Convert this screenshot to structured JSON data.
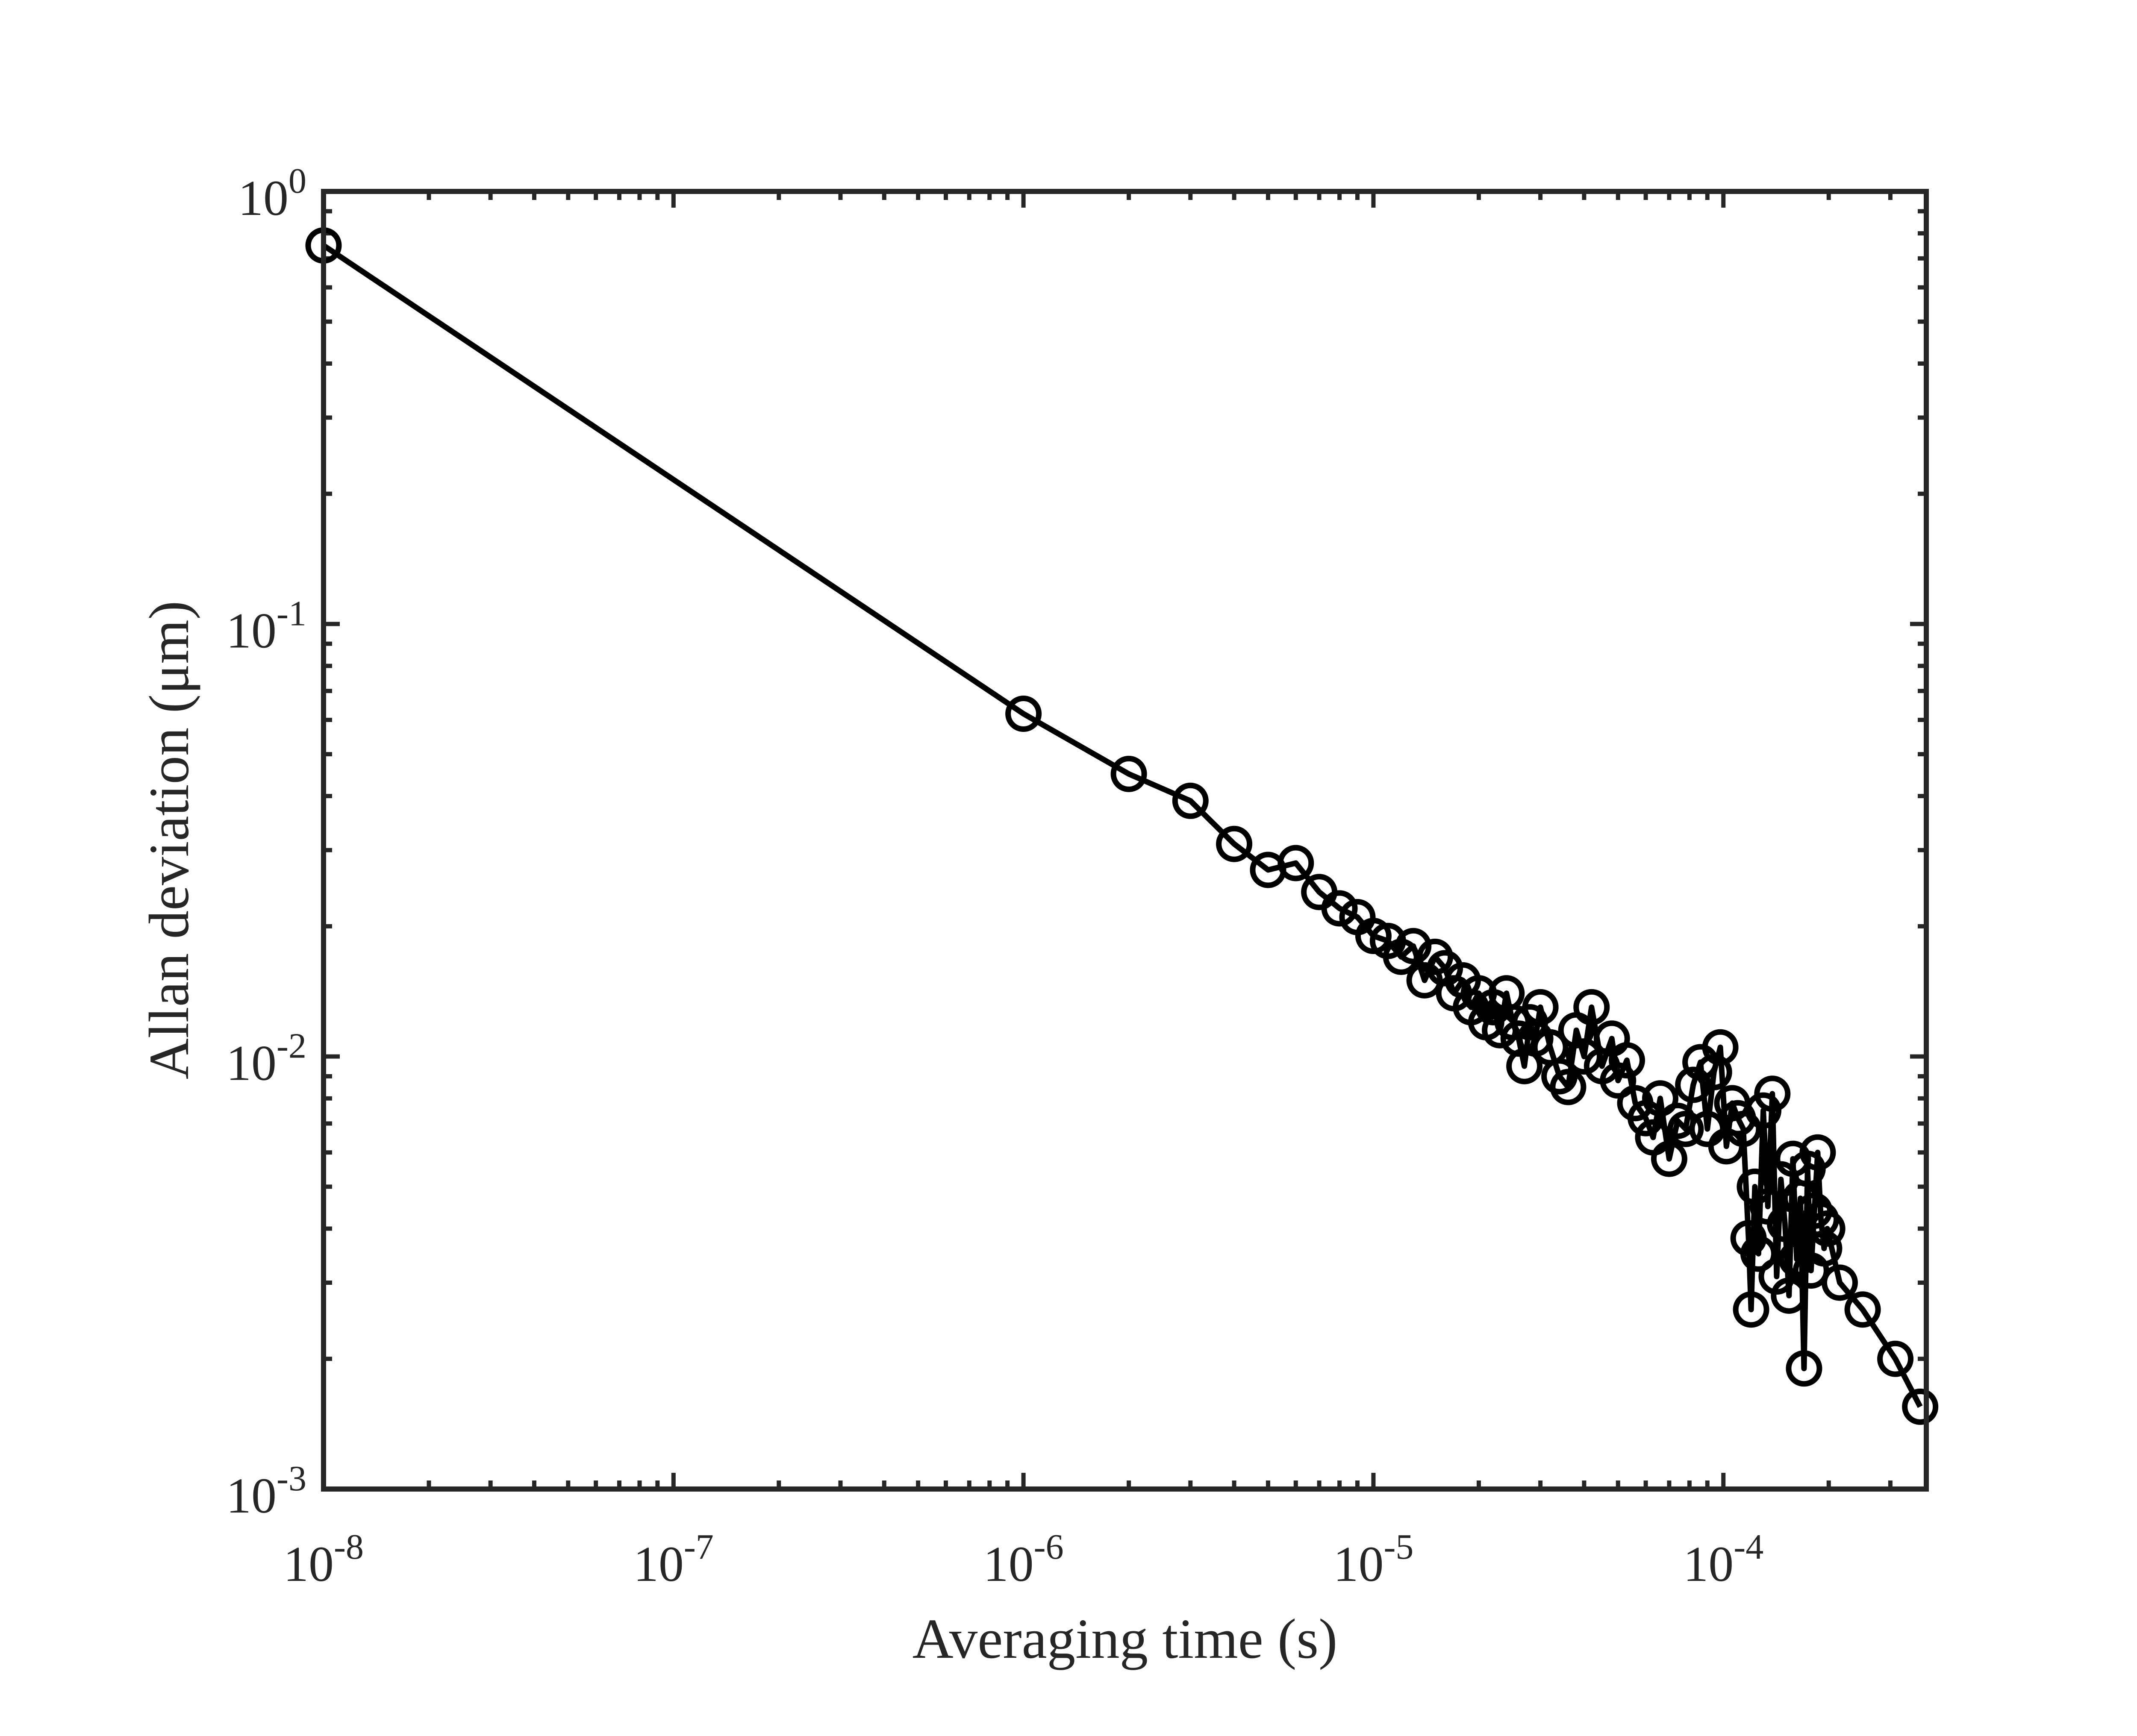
{
  "chart_data": {
    "type": "line",
    "title": "",
    "xlabel": "Averaging time (s)",
    "ylabel": "Allan deviation (μm)",
    "xscale": "log",
    "yscale": "log",
    "xlim": [
      1e-08,
      0.00038
    ],
    "ylim": [
      0.001,
      1
    ],
    "grid": false,
    "legend": "none",
    "marker": "circle",
    "line_color": "#000000",
    "x_ticks": [
      {
        "base": "10",
        "exp": "-8"
      },
      {
        "base": "10",
        "exp": "-7"
      },
      {
        "base": "10",
        "exp": "-6"
      },
      {
        "base": "10",
        "exp": "-5"
      },
      {
        "base": "10",
        "exp": "-4"
      }
    ],
    "y_ticks": [
      {
        "base": "10",
        "exp": "0"
      },
      {
        "base": "10",
        "exp": "-1"
      },
      {
        "base": "10",
        "exp": "-2"
      },
      {
        "base": "10",
        "exp": "-3"
      }
    ],
    "series": [
      {
        "x": [
          1e-08,
          1e-06,
          2e-06,
          3e-06,
          4e-06,
          5e-06,
          6e-06,
          7e-06,
          8e-06,
          9e-06,
          1e-05,
          1.1e-05,
          1.2e-05,
          1.3e-05,
          1.4e-05,
          1.5e-05,
          1.6e-05,
          1.7e-05,
          1.8e-05,
          1.9e-05,
          2e-05,
          2.1e-05,
          2.2e-05,
          2.3e-05,
          2.4e-05,
          2.5e-05,
          2.6e-05,
          2.7e-05,
          2.8e-05,
          2.9e-05,
          3e-05,
          3.2e-05,
          3.4e-05,
          3.6e-05,
          3.8e-05,
          4e-05,
          4.2e-05,
          4.5e-05,
          4.8e-05,
          5e-05,
          5.3e-05,
          5.6e-05,
          6e-05,
          6.3e-05,
          6.6e-05,
          7e-05,
          7.4e-05,
          7.8e-05,
          8.2e-05,
          8.6e-05,
          9e-05,
          9.4e-05,
          9.8e-05,
          0.000102,
          0.000106,
          0.00011,
          0.000114,
          0.000118,
          0.00012,
          0.000123,
          0.000126,
          0.00013,
          0.000134,
          0.000138,
          0.000142,
          0.000146,
          0.00015,
          0.000154,
          0.000158,
          0.000162,
          0.000166,
          0.00017,
          0.000174,
          0.000178,
          0.000182,
          0.000186,
          0.00019,
          0.000194,
          0.000198,
          0.000215,
          0.00025,
          0.00031,
          0.000365
        ],
        "y": [
          0.75,
          0.062,
          0.045,
          0.039,
          0.031,
          0.027,
          0.028,
          0.024,
          0.022,
          0.021,
          0.019,
          0.0185,
          0.017,
          0.018,
          0.015,
          0.017,
          0.016,
          0.014,
          0.015,
          0.013,
          0.014,
          0.012,
          0.013,
          0.0115,
          0.014,
          0.012,
          0.011,
          0.0095,
          0.012,
          0.011,
          0.013,
          0.0105,
          0.009,
          0.0085,
          0.0115,
          0.01,
          0.013,
          0.0095,
          0.011,
          0.0088,
          0.0098,
          0.0078,
          0.0072,
          0.0065,
          0.008,
          0.0058,
          0.0071,
          0.0068,
          0.0086,
          0.0097,
          0.0068,
          0.0092,
          0.0105,
          0.0062,
          0.0078,
          0.0072,
          0.0068,
          0.0038,
          0.0026,
          0.005,
          0.0035,
          0.0075,
          0.0045,
          0.0082,
          0.0031,
          0.0052,
          0.0041,
          0.0028,
          0.0058,
          0.0034,
          0.0047,
          0.0019,
          0.0055,
          0.0032,
          0.0044,
          0.006,
          0.0042,
          0.0036,
          0.004,
          0.003,
          0.0026,
          0.002,
          0.00155
        ]
      }
    ]
  }
}
